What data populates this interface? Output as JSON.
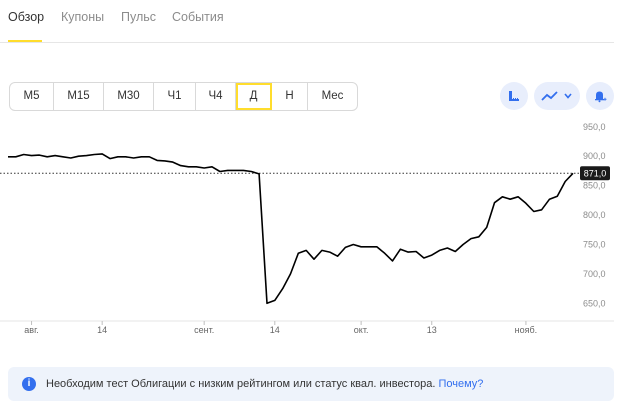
{
  "tabs": [
    {
      "label": "Обзор",
      "active": true
    },
    {
      "label": "Купоны",
      "active": false
    },
    {
      "label": "Пульс",
      "active": false
    },
    {
      "label": "События",
      "active": false
    }
  ],
  "periods": [
    {
      "label": "M5",
      "selected": false
    },
    {
      "label": "M15",
      "selected": false
    },
    {
      "label": "M30",
      "selected": false
    },
    {
      "label": "Ч1",
      "selected": false
    },
    {
      "label": "Ч4",
      "selected": false
    },
    {
      "label": "Д",
      "selected": true
    },
    {
      "label": "Н",
      "selected": false
    },
    {
      "label": "Мес",
      "selected": false
    }
  ],
  "tools": {
    "indicators_icon": "ruler-scale-icon",
    "chart_type_icon": "line-chart-icon",
    "dropdown_icon": "chevron-down-icon",
    "alert_icon": "bell-plus-icon"
  },
  "colors": {
    "accent": "#ffdd2d",
    "link": "#336fee",
    "notice_bg": "#eef3fb",
    "tool_bg": "#e8eefc"
  },
  "chart_data": {
    "type": "line",
    "y_ticks": [
      "950,0",
      "900,0",
      "850,0",
      "800,0",
      "750,0",
      "700,0",
      "650,0"
    ],
    "y_tick_values": [
      950,
      900,
      850,
      800,
      750,
      700,
      650
    ],
    "ylim": [
      625,
      965
    ],
    "x_ticks": [
      {
        "label": "авг.",
        "x": 3
      },
      {
        "label": "14",
        "x": 12
      },
      {
        "label": "сент.",
        "x": 25
      },
      {
        "label": "14",
        "x": 34
      },
      {
        "label": "окт.",
        "x": 45
      },
      {
        "label": "13",
        "x": 54
      },
      {
        "label": "нояб.",
        "x": 66
      }
    ],
    "current_price_label": "871,0",
    "current_price": 871,
    "grid": false,
    "values": [
      899,
      899,
      903,
      901,
      902,
      899,
      901,
      899,
      897,
      900,
      901,
      903,
      904,
      896,
      899,
      899,
      897,
      899,
      899,
      893,
      892,
      890,
      884,
      882,
      882,
      880,
      882,
      874,
      876,
      876,
      876,
      874,
      870,
      650,
      655,
      675,
      700,
      735,
      740,
      725,
      740,
      737,
      730,
      745,
      750,
      746,
      746,
      746,
      735,
      722,
      742,
      737,
      738,
      727,
      732,
      740,
      744,
      738,
      750,
      760,
      763,
      779,
      821,
      831,
      827,
      831,
      820,
      806,
      809,
      827,
      832,
      857,
      871
    ]
  },
  "notice": {
    "icon": "info-icon",
    "text": "Необходим тест Облигации с низким рейтингом или статус квал. инвестора. ",
    "link": "Почему?"
  }
}
